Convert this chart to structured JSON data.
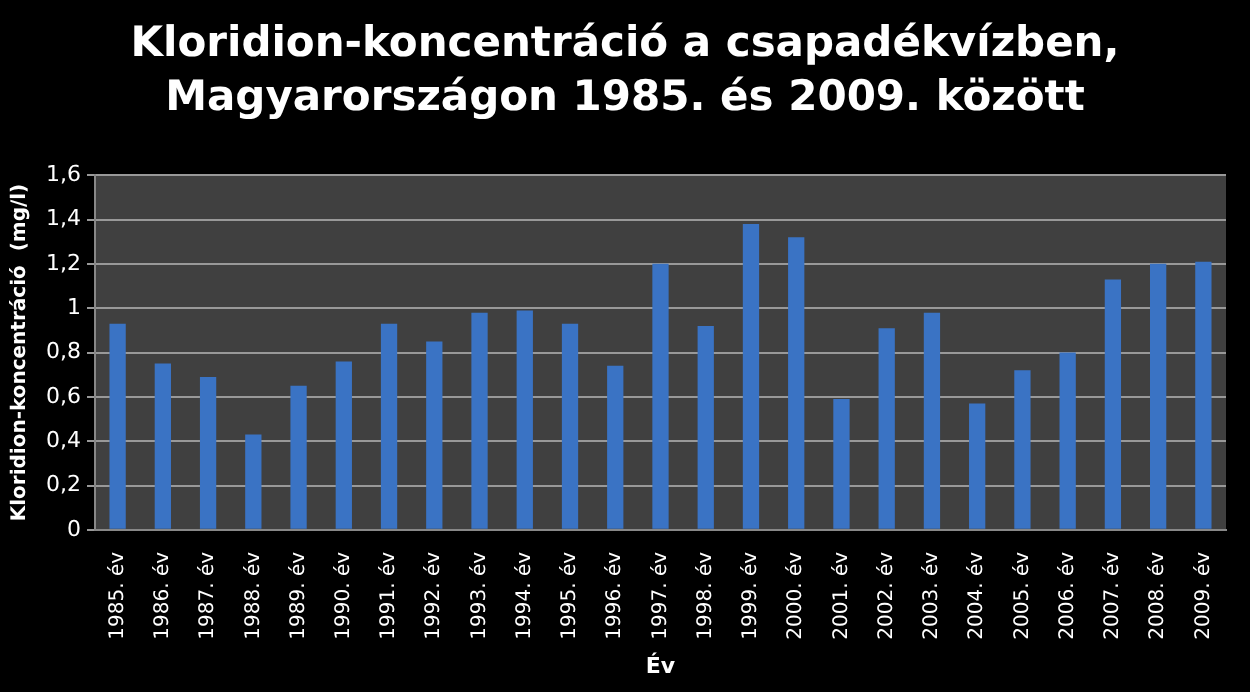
{
  "chart_data": {
    "type": "bar",
    "title": "Kloridion-koncentráció a csapadékvízben,\nMagyarországon 1985. és 2009. között",
    "xlabel": "Év",
    "ylabel": "Kloridion-koncentráció  (mg/l)",
    "categories": [
      "1985. év",
      "1986. év",
      "1987. év",
      "1988. év",
      "1989. év",
      "1990. év",
      "1991. év",
      "1992. év",
      "1993. év",
      "1994. év",
      "1995. év",
      "1996. év",
      "1997. év",
      "1998. év",
      "1999. év",
      "2000. év",
      "2001. év",
      "2002. év",
      "2003. év",
      "2004. év",
      "2005. év",
      "2006. év",
      "2007. év",
      "2008. év",
      "2009. év"
    ],
    "values": [
      0.93,
      0.75,
      0.69,
      0.43,
      0.65,
      0.76,
      0.93,
      0.85,
      0.98,
      0.99,
      0.93,
      0.74,
      1.2,
      0.92,
      1.38,
      1.32,
      0.59,
      0.91,
      0.98,
      0.57,
      0.72,
      0.8,
      1.13,
      1.2,
      1.21
    ],
    "color": "#3a73c4",
    "ylim": [
      0,
      1.6
    ],
    "yticks": [
      {
        "value": 0,
        "label": "0"
      },
      {
        "value": 0.2,
        "label": "0,2"
      },
      {
        "value": 0.4,
        "label": "0,4"
      },
      {
        "value": 0.6,
        "label": "0,6"
      },
      {
        "value": 0.8,
        "label": "0,8"
      },
      {
        "value": 1,
        "label": "1"
      },
      {
        "value": 1.2,
        "label": "1,2"
      },
      {
        "value": 1.4,
        "label": "1,4"
      },
      {
        "value": 1.6,
        "label": "1,6"
      }
    ],
    "grid": "y"
  }
}
